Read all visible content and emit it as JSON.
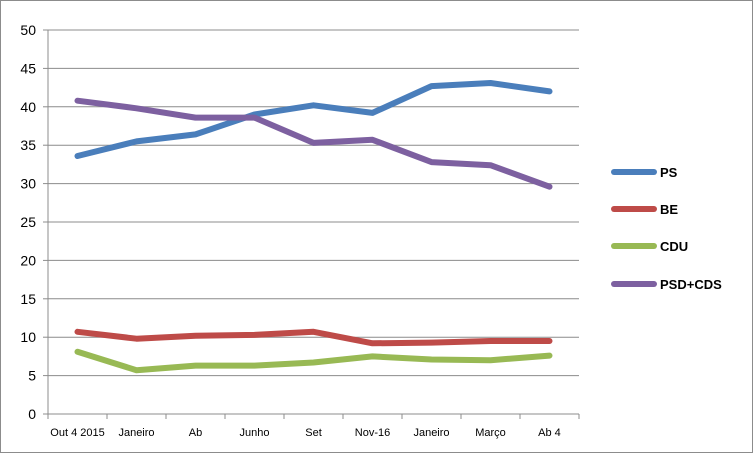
{
  "chart_data": {
    "type": "line",
    "title": "",
    "xlabel": "",
    "ylabel": "",
    "categories": [
      "Out 4 2015",
      "Janeiro",
      "Ab",
      "Junho",
      "Set",
      "Nov-16",
      "Janeiro",
      "Março",
      "Ab 4"
    ],
    "ylim": [
      0,
      50
    ],
    "yticks": [
      0,
      5,
      10,
      15,
      20,
      25,
      30,
      35,
      40,
      45,
      50
    ],
    "grid": true,
    "legend_position": "right",
    "series": [
      {
        "name": "PS",
        "color": "#4a7ebb",
        "values": [
          33.6,
          35.5,
          36.4,
          39.0,
          40.2,
          39.2,
          42.7,
          43.1,
          42.0
        ]
      },
      {
        "name": "BE",
        "color": "#be4b48",
        "values": [
          10.7,
          9.8,
          10.2,
          10.3,
          10.7,
          9.2,
          9.3,
          9.5,
          9.5
        ]
      },
      {
        "name": "CDU",
        "color": "#98b954",
        "values": [
          8.1,
          5.7,
          6.3,
          6.3,
          6.7,
          7.5,
          7.1,
          7.0,
          7.6
        ]
      },
      {
        "name": "PSD+CDS",
        "color": "#7d60a0",
        "values": [
          40.8,
          39.8,
          38.6,
          38.6,
          35.3,
          35.7,
          32.8,
          32.4,
          29.6
        ]
      }
    ]
  }
}
